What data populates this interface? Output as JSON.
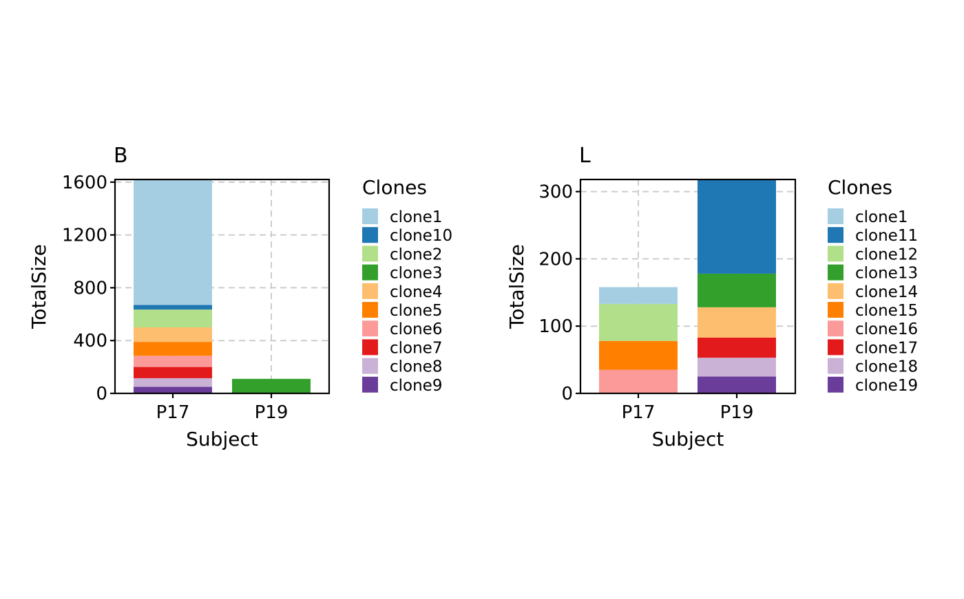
{
  "chart_data": [
    {
      "type": "bar",
      "stacked": true,
      "title": "B",
      "xlabel": "Subject",
      "ylabel": "TotalSize",
      "categories": [
        "P17",
        "P19"
      ],
      "ylim": [
        0,
        1620
      ],
      "yticks": [
        0,
        400,
        800,
        1200,
        1600
      ],
      "grid": true,
      "legend_position": "right",
      "legend_title": "Clones",
      "series": [
        {
          "name": "clone1",
          "color": "#a6cee3",
          "values": [
            945,
            0
          ]
        },
        {
          "name": "clone10",
          "color": "#1f78b4",
          "values": [
            35,
            0
          ]
        },
        {
          "name": "clone2",
          "color": "#b2df8a",
          "values": [
            135,
            0
          ]
        },
        {
          "name": "clone3",
          "color": "#33a02c",
          "values": [
            0,
            110
          ]
        },
        {
          "name": "clone4",
          "color": "#fdbf6f",
          "values": [
            110,
            0
          ]
        },
        {
          "name": "clone5",
          "color": "#ff7f00",
          "values": [
            105,
            0
          ]
        },
        {
          "name": "clone6",
          "color": "#fb9a99",
          "values": [
            85,
            0
          ]
        },
        {
          "name": "clone7",
          "color": "#e31a1c",
          "values": [
            85,
            0
          ]
        },
        {
          "name": "clone8",
          "color": "#cab2d6",
          "values": [
            65,
            0
          ]
        },
        {
          "name": "clone9",
          "color": "#6a3d9a",
          "values": [
            50,
            0
          ]
        }
      ]
    },
    {
      "type": "bar",
      "stacked": true,
      "title": "L",
      "xlabel": "Subject",
      "ylabel": "TotalSize",
      "categories": [
        "P17",
        "P19"
      ],
      "ylim": [
        0,
        318
      ],
      "yticks": [
        0,
        100,
        200,
        300
      ],
      "grid": true,
      "legend_position": "right",
      "legend_title": "Clones",
      "series": [
        {
          "name": "clone1",
          "color": "#a6cee3",
          "values": [
            25,
            0
          ]
        },
        {
          "name": "clone11",
          "color": "#1f78b4",
          "values": [
            0,
            140
          ]
        },
        {
          "name": "clone12",
          "color": "#b2df8a",
          "values": [
            55,
            0
          ]
        },
        {
          "name": "clone13",
          "color": "#33a02c",
          "values": [
            0,
            50
          ]
        },
        {
          "name": "clone14",
          "color": "#fdbf6f",
          "values": [
            0,
            45
          ]
        },
        {
          "name": "clone15",
          "color": "#ff7f00",
          "values": [
            43,
            0
          ]
        },
        {
          "name": "clone16",
          "color": "#fb9a99",
          "values": [
            35,
            0
          ]
        },
        {
          "name": "clone17",
          "color": "#e31a1c",
          "values": [
            0,
            30
          ]
        },
        {
          "name": "clone18",
          "color": "#cab2d6",
          "values": [
            0,
            28
          ]
        },
        {
          "name": "clone19",
          "color": "#6a3d9a",
          "values": [
            0,
            25
          ]
        }
      ]
    }
  ]
}
